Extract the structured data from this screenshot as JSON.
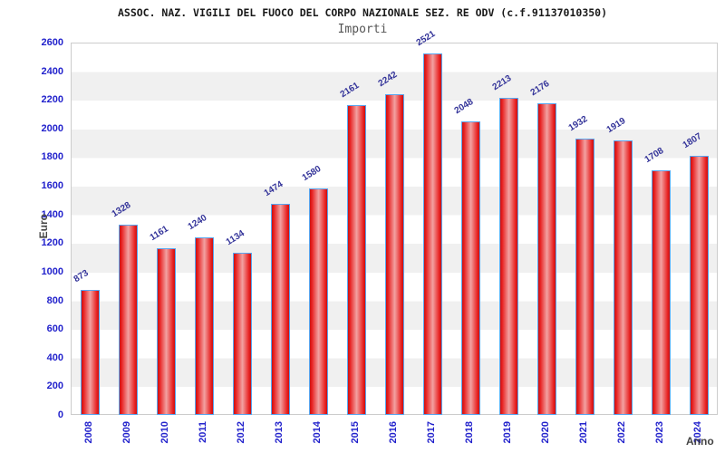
{
  "header": {
    "title": "ASSOC. NAZ. VIGILI DEL FUOCO DEL CORPO NAZIONALE SEZ. RE ODV (c.f.91137010350)",
    "subtitle": "Importi"
  },
  "chart_data": {
    "type": "bar",
    "title": "Importi",
    "xlabel": "Anno",
    "ylabel": "Euro",
    "categories": [
      "2008",
      "2009",
      "2010",
      "2011",
      "2012",
      "2013",
      "2014",
      "2015",
      "2016",
      "2017",
      "2018",
      "2019",
      "2020",
      "2021",
      "2022",
      "2023",
      "2024"
    ],
    "values": [
      873,
      1328,
      1161,
      1240,
      1134,
      1474,
      1580,
      2161,
      2242,
      2521,
      2048,
      2213,
      2176,
      1932,
      1919,
      1708,
      1807
    ],
    "ylim": [
      0,
      2600
    ],
    "ytick_step": 200,
    "grid": true,
    "legend": "none",
    "band_colors": [
      "#ffffff",
      "#f0f0f0"
    ],
    "colors": {
      "bar_edge_red": "#c91111",
      "bar_mid_pink": "#f2a2a2",
      "bar_border_blue": "#58a6f0",
      "axis_text_blue": "#2222cc",
      "value_label_blue": "#333399",
      "axis_title_gray": "#444444",
      "subtitle_gray": "#555555",
      "grid_gray": "#d9d9d9"
    }
  }
}
